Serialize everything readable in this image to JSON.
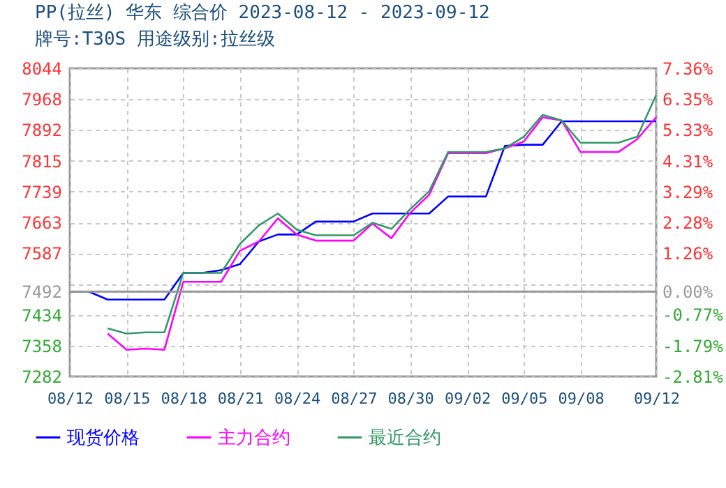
{
  "chart_data": {
    "type": "line",
    "title": "PP(拉丝) 华东 综合价 2023-08-12 - 2023-09-12",
    "subtitle": "牌号:T30S 用途级别:拉丝级",
    "x": [
      "2023-08-12",
      "2023-08-13",
      "2023-08-14",
      "2023-08-15",
      "2023-08-16",
      "2023-08-17",
      "2023-08-18",
      "2023-08-19",
      "2023-08-20",
      "2023-08-21",
      "2023-08-22",
      "2023-08-23",
      "2023-08-24",
      "2023-08-25",
      "2023-08-26",
      "2023-08-27",
      "2023-08-28",
      "2023-08-29",
      "2023-08-30",
      "2023-08-31",
      "2023-09-01",
      "2023-09-02",
      "2023-09-03",
      "2023-09-04",
      "2023-09-05",
      "2023-09-06",
      "2023-09-07",
      "2023-09-08",
      "2023-09-09",
      "2023-09-10",
      "2023-09-11",
      "2023-09-12"
    ],
    "series": [
      {
        "name": "现货价格",
        "color": "#0000ff",
        "values": [
          7492,
          7492,
          7472,
          7472,
          7472,
          7472,
          7538,
          7538,
          7545,
          7560,
          7616,
          7633,
          7633,
          7665,
          7665,
          7665,
          7685,
          7685,
          7685,
          7685,
          7727,
          7727,
          7727,
          7852,
          7855,
          7855,
          7913,
          7913,
          7913,
          7913,
          7913,
          7913
        ]
      },
      {
        "name": "主力合约",
        "color": "#ff00ff",
        "values": [
          null,
          null,
          7388,
          7348,
          7351,
          7348,
          7516,
          7516,
          7516,
          7593,
          7616,
          7673,
          7633,
          7618,
          7618,
          7618,
          7660,
          7624,
          7687,
          7731,
          7834,
          7834,
          7834,
          7846,
          7863,
          7923,
          7915,
          7837,
          7837,
          7837,
          7869,
          7923
        ]
      },
      {
        "name": "最近合约",
        "color": "#339966",
        "values": [
          null,
          null,
          7401,
          7388,
          7391,
          7391,
          7538,
          7538,
          7538,
          7610,
          7656,
          7685,
          7645,
          7631,
          7631,
          7631,
          7662,
          7647,
          7696,
          7740,
          7837,
          7837,
          7837,
          7846,
          7875,
          7929,
          7915,
          7860,
          7860,
          7860,
          7875,
          7978
        ]
      }
    ],
    "xlim": [
      "2023-08-12",
      "2023-09-12"
    ],
    "xticks": [
      {
        "value": "2023-08-12",
        "label": "08/12"
      },
      {
        "value": "2023-08-15",
        "label": "08/15"
      },
      {
        "value": "2023-08-18",
        "label": "08/18"
      },
      {
        "value": "2023-08-21",
        "label": "08/21"
      },
      {
        "value": "2023-08-24",
        "label": "08/24"
      },
      {
        "value": "2023-08-27",
        "label": "08/27"
      },
      {
        "value": "2023-08-30",
        "label": "08/30"
      },
      {
        "value": "2023-09-02",
        "label": "09/02"
      },
      {
        "value": "2023-09-05",
        "label": "09/05"
      },
      {
        "value": "2023-09-08",
        "label": "09/08"
      },
      {
        "value": "2023-09-12",
        "label": "09/12"
      }
    ],
    "ylim": [
      7282,
      8044
    ],
    "yticks": [
      8044,
      7968,
      7892,
      7815,
      7739,
      7663,
      7587,
      {
        "value": 7511,
        "label": null
      },
      7492,
      7434,
      7358,
      7282
    ],
    "y2lim": [
      -2.81,
      7.36
    ],
    "y2ticks": [
      {
        "value": 7.36,
        "label": "7.36%"
      },
      {
        "value": 6.35,
        "label": "6.35%"
      },
      {
        "value": 5.33,
        "label": "5.33%"
      },
      {
        "value": 4.31,
        "label": "4.31%"
      },
      {
        "value": 3.29,
        "label": "3.29%"
      },
      {
        "value": 2.28,
        "label": "2.28%"
      },
      {
        "value": 1.26,
        "label": "1.26%"
      },
      {
        "value": 0,
        "label": "0.00%"
      },
      {
        "value": -0.77,
        "label": "-0.77%"
      },
      {
        "value": -1.79,
        "label": "-1.79%"
      },
      {
        "value": -2.81,
        "label": "-2.81%"
      }
    ],
    "ref_lines": [
      {
        "axis": "y",
        "value": 7492,
        "color": "#999999"
      }
    ],
    "grid": true,
    "legend": "bottom",
    "marker": "none",
    "line_style": "solid"
  }
}
